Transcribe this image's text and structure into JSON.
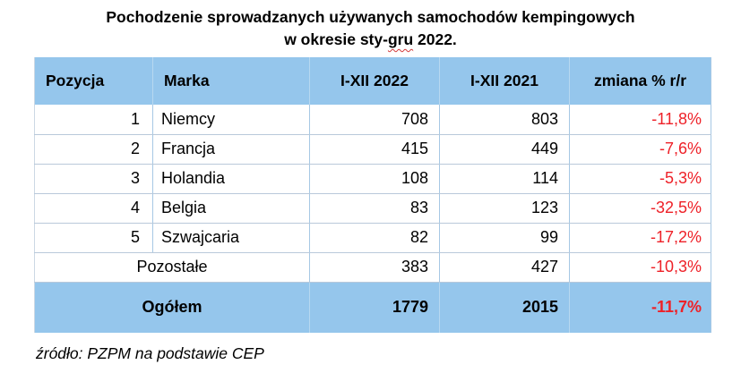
{
  "title": {
    "line1": "Pochodzenie sprowadzanych używanych samochodów kempingowych",
    "line2_before": "w okresie sty-",
    "line2_flagged": "gru",
    "line2_after": " 2022."
  },
  "table": {
    "headers": [
      "Pozycja",
      "Marka",
      "I-XII 2022",
      "I-XII 2021",
      "zmiana % r/r"
    ],
    "rows": [
      {
        "pozycja": "1",
        "marka": "Niemcy",
        "y2022": "708",
        "y2021": "803",
        "change": "-11,8%"
      },
      {
        "pozycja": "2",
        "marka": "Francja",
        "y2022": "415",
        "y2021": "449",
        "change": "-7,6%"
      },
      {
        "pozycja": "3",
        "marka": "Holandia",
        "y2022": "108",
        "y2021": "114",
        "change": "-5,3%"
      },
      {
        "pozycja": "4",
        "marka": "Belgia",
        "y2022": "83",
        "y2021": "123",
        "change": "-32,5%"
      },
      {
        "pozycza_note": "",
        "pozycja": "5",
        "marka": "Szwajcaria",
        "y2022": "82",
        "y2021": "99",
        "change": "-17,2%"
      }
    ],
    "pozostale": {
      "label": "Pozostałe",
      "y2022": "383",
      "y2021": "427",
      "change": "-10,3%"
    },
    "total": {
      "label": "Ogółem",
      "y2022": "1779",
      "y2021": "2015",
      "change": "-11,7%"
    }
  },
  "footer": {
    "source": "źródło: PZPM na podstawie CEP"
  },
  "colors": {
    "header_bg": "#95C6EC",
    "negative_text": "#EE2128",
    "grid_horizontal": "#B9C9DA",
    "grid_vertical": "#A6C8E4",
    "text": "#000000",
    "background": "#FFFFFF",
    "spellcheck_underline": "#D23A3A"
  },
  "chart_data": {
    "type": "table",
    "title": "Pochodzenie sprowadzanych używanych samochodów kempingowych w okresie sty-gru 2022.",
    "columns": [
      "Pozycja",
      "Marka",
      "I-XII 2022",
      "I-XII 2021",
      "zmiana % r/r"
    ],
    "rows": [
      [
        1,
        "Niemcy",
        708,
        803,
        -11.8
      ],
      [
        2,
        "Francja",
        415,
        449,
        -7.6
      ],
      [
        3,
        "Holandia",
        108,
        114,
        -5.3
      ],
      [
        4,
        "Belgia",
        83,
        123,
        -32.5
      ],
      [
        5,
        "Szwajcaria",
        82,
        99,
        -17.2
      ],
      [
        null,
        "Pozostałe",
        383,
        427,
        -10.3
      ],
      [
        null,
        "Ogółem",
        1779,
        2015,
        -11.7
      ]
    ],
    "change_unit": "% r/r",
    "source": "źródło: PZPM na podstawie CEP"
  }
}
